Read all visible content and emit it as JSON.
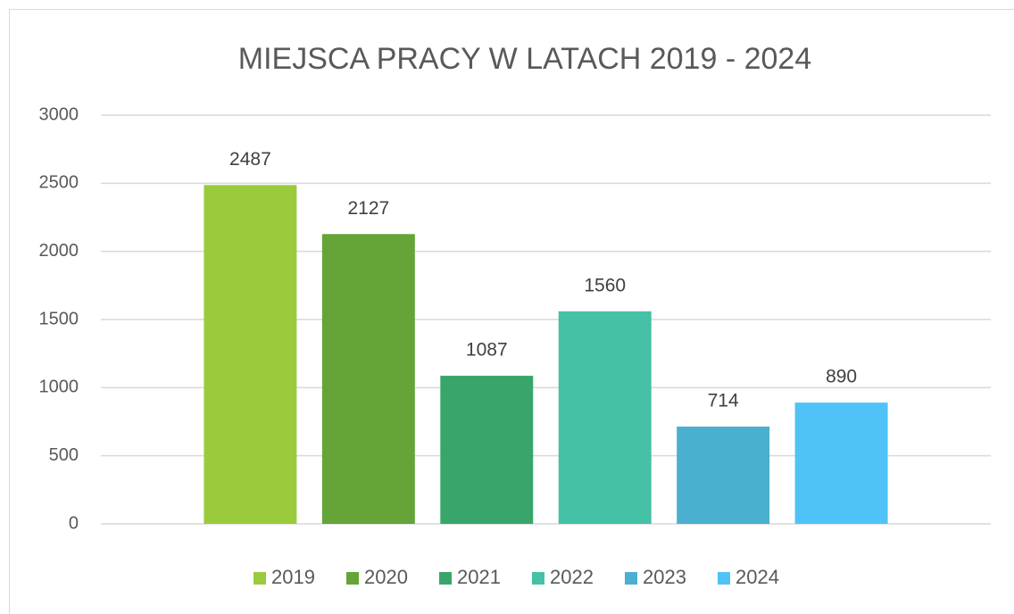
{
  "chart_data": {
    "type": "bar",
    "title": "MIEJSCA PRACY W LATACH 2019 - 2024",
    "categories": [
      null
    ],
    "series": [
      {
        "name": "2019",
        "color": "#9acb3c",
        "values": [
          2487
        ]
      },
      {
        "name": "2020",
        "color": "#65a437",
        "values": [
          2127
        ]
      },
      {
        "name": "2021",
        "color": "#38a66a",
        "values": [
          1087
        ]
      },
      {
        "name": "2022",
        "color": "#45c1a5",
        "values": [
          1560
        ]
      },
      {
        "name": "2023",
        "color": "#4bafd0",
        "values": [
          714
        ]
      },
      {
        "name": "2024",
        "color": "#4fc3f7",
        "values": [
          890
        ]
      }
    ],
    "ylim": [
      0,
      3000
    ],
    "yticks": [
      0,
      500,
      1000,
      1500,
      2000,
      2500,
      3000
    ],
    "grid": true,
    "legend": "bottom"
  }
}
